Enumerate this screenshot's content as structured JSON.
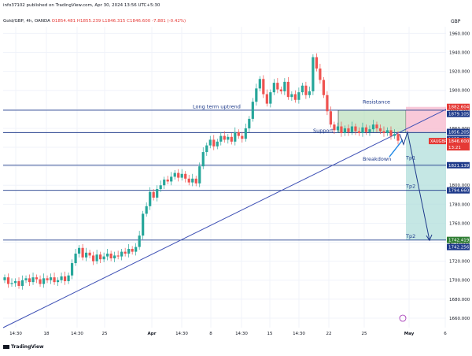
{
  "header": {
    "published": "info37102 published on TradingView.com, Apr 30, 2024 13:56 UTC+5:30",
    "symbol_line": "Gold/GBP, 4h, OANDA",
    "o": "O1854.481",
    "h": "H1855.239",
    "l": "L1846.315",
    "c": "C1846.600",
    "chg": "-7.881 (-0.42%)"
  },
  "footer": {
    "brand": "TradingView"
  },
  "colors": {
    "up": "#26a69a",
    "down": "#ef5350",
    "level": "#1e3a8a",
    "trend": "#3f51b5",
    "zone_support": "#a5d6a7",
    "zone_resist": "#f8bbd0",
    "target": "#b2dfdb",
    "label_bg": "#1e3a8a",
    "price_red": "#e53935",
    "price_green": "#2e7d32"
  },
  "chart_data": {
    "type": "candlestick",
    "currency": "GBP",
    "y_ticks": [
      1660,
      1680,
      1700,
      1720,
      1740,
      1760,
      1780,
      1800,
      1820,
      1840,
      1860,
      1880,
      1900,
      1920,
      1940,
      1960
    ],
    "x_ticks": [
      "14:30",
      "18",
      "14:30",
      "25",
      "Apr",
      "14:30",
      "8",
      "14:30",
      "15",
      "14:30",
      "22",
      "25",
      "May",
      "6"
    ],
    "ylim": [
      1650,
      1967
    ],
    "levels": [
      {
        "value": 1879.105,
        "label": "1879.105"
      },
      {
        "value": 1855.49,
        "label": "1855.490"
      },
      {
        "value": 1821.139,
        "label": "1821.139"
      },
      {
        "value": 1794.66,
        "label": "1794.660"
      },
      {
        "value": 1742.256,
        "label": "1742.256"
      }
    ],
    "price_labels": [
      {
        "value": 1882.604,
        "label": "1882.604"
      },
      {
        "value": 1856.205,
        "label": "1856.205"
      },
      {
        "value": 1846.6,
        "label": "1846.600"
      },
      {
        "value": 1742.419,
        "label": "1742.419"
      }
    ],
    "current": {
      "symbol": "XAUGBP",
      "price": "1846.600",
      "countdown": "13:21"
    },
    "annotations": {
      "trend": "Long term uptrend",
      "resistance": "Resistance",
      "support": "Support",
      "breakdown": "Breakdown",
      "tp1": "Tp1",
      "tp2": "Tp2",
      "tp3": "Tp2"
    },
    "closes": [
      1703,
      1696,
      1697,
      1699,
      1694,
      1700,
      1702,
      1698,
      1703,
      1701,
      1696,
      1702,
      1700,
      1703,
      1698,
      1700,
      1704,
      1699,
      1705,
      1718,
      1728,
      1734,
      1724,
      1729,
      1726,
      1720,
      1727,
      1722,
      1725,
      1728,
      1723,
      1726,
      1725,
      1730,
      1728,
      1733,
      1730,
      1735,
      1747,
      1770,
      1778,
      1793,
      1787,
      1796,
      1800,
      1806,
      1804,
      1809,
      1813,
      1808,
      1812,
      1807,
      1803,
      1807,
      1802,
      1820,
      1835,
      1842,
      1848,
      1841,
      1846,
      1852,
      1848,
      1851,
      1846,
      1856,
      1852,
      1849,
      1860,
      1870,
      1888,
      1902,
      1912,
      1896,
      1886,
      1898,
      1908,
      1901,
      1899,
      1909,
      1893,
      1896,
      1890,
      1898,
      1905,
      1895,
      1899,
      1935,
      1923,
      1911,
      1895,
      1878,
      1864,
      1858,
      1862,
      1855,
      1860,
      1856,
      1862,
      1857,
      1855,
      1861,
      1856,
      1859,
      1864,
      1860,
      1857,
      1855,
      1858,
      1852,
      1854,
      1847
    ],
    "candle_color_rule": "green if close >= previous close, red otherwise",
    "start_close": 1700
  }
}
